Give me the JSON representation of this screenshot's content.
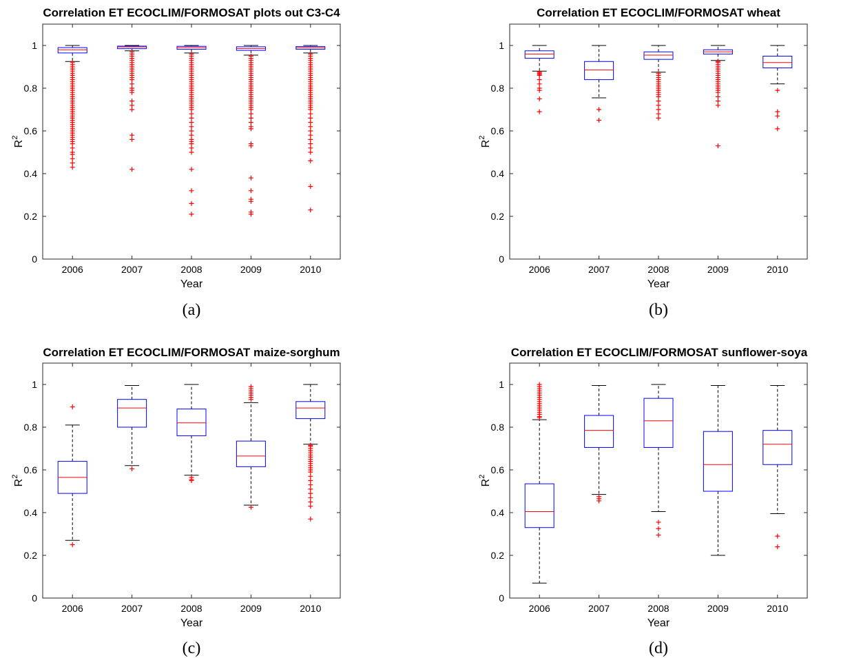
{
  "chart_data": [
    {
      "type": "box",
      "title": "Correlation ET ECOCLIM/FORMOSAT plots out C3-C4",
      "panel_label": "(a)",
      "xlabel": "Year",
      "ylabel": "R",
      "ylabel_superscript": "2",
      "categories": [
        "2006",
        "2007",
        "2008",
        "2009",
        "2010"
      ],
      "ylim": [
        0,
        1.1
      ],
      "yticks": [
        "0",
        "0.2",
        "0.4",
        "0.6",
        "0.8",
        "1"
      ],
      "boxes": [
        {
          "q1": 0.965,
          "median": 0.98,
          "q3": 0.99,
          "whisker_low": 0.925,
          "whisker_high": 1.0,
          "outliers": [
            0.92,
            0.91,
            0.9,
            0.89,
            0.88,
            0.87,
            0.86,
            0.85,
            0.84,
            0.83,
            0.82,
            0.81,
            0.8,
            0.79,
            0.78,
            0.77,
            0.76,
            0.75,
            0.74,
            0.73,
            0.72,
            0.71,
            0.7,
            0.69,
            0.68,
            0.67,
            0.66,
            0.65,
            0.64,
            0.63,
            0.62,
            0.61,
            0.6,
            0.59,
            0.58,
            0.57,
            0.56,
            0.55,
            0.54,
            0.52,
            0.5,
            0.49,
            0.47,
            0.45,
            0.43
          ]
        },
        {
          "q1": 0.985,
          "median": 0.993,
          "q3": 0.997,
          "whisker_low": 0.975,
          "whisker_high": 1.0,
          "outliers": [
            0.97,
            0.96,
            0.95,
            0.94,
            0.93,
            0.92,
            0.91,
            0.9,
            0.89,
            0.88,
            0.87,
            0.86,
            0.85,
            0.84,
            0.82,
            0.8,
            0.79,
            0.78,
            0.74,
            0.72,
            0.7,
            0.58,
            0.56,
            0.42
          ]
        },
        {
          "q1": 0.982,
          "median": 0.99,
          "q3": 0.996,
          "whisker_low": 0.965,
          "whisker_high": 1.0,
          "outliers": [
            0.96,
            0.95,
            0.94,
            0.93,
            0.92,
            0.91,
            0.9,
            0.89,
            0.88,
            0.87,
            0.86,
            0.85,
            0.84,
            0.83,
            0.82,
            0.81,
            0.8,
            0.79,
            0.78,
            0.77,
            0.76,
            0.75,
            0.74,
            0.73,
            0.72,
            0.71,
            0.7,
            0.68,
            0.66,
            0.64,
            0.62,
            0.6,
            0.58,
            0.56,
            0.55,
            0.54,
            0.52,
            0.5,
            0.42,
            0.32,
            0.26,
            0.21
          ]
        },
        {
          "q1": 0.977,
          "median": 0.986,
          "q3": 0.994,
          "whisker_low": 0.955,
          "whisker_high": 1.0,
          "outliers": [
            0.95,
            0.94,
            0.93,
            0.92,
            0.91,
            0.9,
            0.89,
            0.88,
            0.87,
            0.86,
            0.85,
            0.84,
            0.83,
            0.82,
            0.81,
            0.8,
            0.79,
            0.78,
            0.77,
            0.76,
            0.75,
            0.74,
            0.73,
            0.72,
            0.71,
            0.7,
            0.68,
            0.66,
            0.64,
            0.62,
            0.61,
            0.54,
            0.53,
            0.38,
            0.32,
            0.28,
            0.27,
            0.22,
            0.21
          ]
        },
        {
          "q1": 0.982,
          "median": 0.989,
          "q3": 0.995,
          "whisker_low": 0.965,
          "whisker_high": 1.0,
          "outliers": [
            0.96,
            0.95,
            0.94,
            0.93,
            0.92,
            0.91,
            0.9,
            0.89,
            0.88,
            0.87,
            0.86,
            0.85,
            0.84,
            0.83,
            0.82,
            0.81,
            0.8,
            0.79,
            0.78,
            0.77,
            0.76,
            0.75,
            0.74,
            0.73,
            0.72,
            0.71,
            0.7,
            0.68,
            0.66,
            0.64,
            0.62,
            0.6,
            0.58,
            0.56,
            0.54,
            0.52,
            0.5,
            0.46,
            0.34,
            0.23
          ]
        }
      ]
    },
    {
      "type": "box",
      "title": "Correlation ET ECOCLIM/FORMOSAT wheat",
      "panel_label": "(b)",
      "xlabel": "Year",
      "ylabel": "R",
      "ylabel_superscript": "2",
      "categories": [
        "2006",
        "2007",
        "2008",
        "2009",
        "2010"
      ],
      "ylim": [
        0,
        1.1
      ],
      "yticks": [
        "0",
        "0.2",
        "0.4",
        "0.6",
        "0.8",
        "1"
      ],
      "boxes": [
        {
          "q1": 0.94,
          "median": 0.96,
          "q3": 0.975,
          "whisker_low": 0.88,
          "whisker_high": 1.0,
          "outliers": [
            0.875,
            0.87,
            0.865,
            0.86,
            0.84,
            0.82,
            0.8,
            0.79,
            0.75,
            0.69
          ]
        },
        {
          "q1": 0.84,
          "median": 0.885,
          "q3": 0.925,
          "whisker_low": 0.755,
          "whisker_high": 1.0,
          "outliers": [
            0.7,
            0.65
          ]
        },
        {
          "q1": 0.935,
          "median": 0.955,
          "q3": 0.97,
          "whisker_low": 0.875,
          "whisker_high": 1.0,
          "outliers": [
            0.87,
            0.86,
            0.85,
            0.84,
            0.83,
            0.82,
            0.81,
            0.8,
            0.79,
            0.78,
            0.77,
            0.76,
            0.74,
            0.72,
            0.7,
            0.68,
            0.66
          ]
        },
        {
          "q1": 0.96,
          "median": 0.97,
          "q3": 0.98,
          "whisker_low": 0.93,
          "whisker_high": 1.0,
          "outliers": [
            0.925,
            0.92,
            0.91,
            0.9,
            0.89,
            0.88,
            0.87,
            0.86,
            0.85,
            0.84,
            0.83,
            0.82,
            0.81,
            0.8,
            0.79,
            0.78,
            0.76,
            0.74,
            0.72,
            0.53
          ]
        },
        {
          "q1": 0.895,
          "median": 0.92,
          "q3": 0.95,
          "whisker_low": 0.82,
          "whisker_high": 1.0,
          "outliers": [
            0.79,
            0.69,
            0.67,
            0.61
          ]
        }
      ]
    },
    {
      "type": "box",
      "title": "Correlation ET ECOCLIM/FORMOSAT maize-sorghum",
      "panel_label": "(c)",
      "xlabel": "Year",
      "ylabel": "R",
      "ylabel_superscript": "2",
      "categories": [
        "2006",
        "2007",
        "2008",
        "2009",
        "2010"
      ],
      "ylim": [
        0,
        1.1
      ],
      "yticks": [
        "0",
        "0.2",
        "0.4",
        "0.6",
        "0.8",
        "1"
      ],
      "boxes": [
        {
          "q1": 0.49,
          "median": 0.565,
          "q3": 0.64,
          "whisker_low": 0.27,
          "whisker_high": 0.81,
          "outliers": [
            0.895,
            0.25
          ]
        },
        {
          "q1": 0.8,
          "median": 0.89,
          "q3": 0.93,
          "whisker_low": 0.62,
          "whisker_high": 0.995,
          "outliers": [
            0.605
          ]
        },
        {
          "q1": 0.76,
          "median": 0.82,
          "q3": 0.885,
          "whisker_low": 0.575,
          "whisker_high": 1.0,
          "outliers": [
            0.565,
            0.555,
            0.55
          ]
        },
        {
          "q1": 0.615,
          "median": 0.665,
          "q3": 0.735,
          "whisker_low": 0.435,
          "whisker_high": 0.915,
          "outliers": [
            0.99,
            0.98,
            0.97,
            0.96,
            0.95,
            0.94,
            0.93,
            0.425
          ]
        },
        {
          "q1": 0.84,
          "median": 0.89,
          "q3": 0.92,
          "whisker_low": 0.72,
          "whisker_high": 1.0,
          "outliers": [
            0.715,
            0.71,
            0.7,
            0.69,
            0.68,
            0.67,
            0.66,
            0.65,
            0.64,
            0.63,
            0.62,
            0.61,
            0.6,
            0.59,
            0.57,
            0.55,
            0.53,
            0.51,
            0.49,
            0.47,
            0.45,
            0.43,
            0.37
          ]
        }
      ]
    },
    {
      "type": "box",
      "title": "Correlation ET ECOCLIM/FORMOSAT sunflower-soya",
      "panel_label": "(d)",
      "xlabel": "Year",
      "ylabel": "R",
      "ylabel_superscript": "2",
      "categories": [
        "2006",
        "2007",
        "2008",
        "2009",
        "2010"
      ],
      "ylim": [
        0,
        1.1
      ],
      "yticks": [
        "0",
        "0.2",
        "0.4",
        "0.6",
        "0.8",
        "1"
      ],
      "boxes": [
        {
          "q1": 0.33,
          "median": 0.405,
          "q3": 0.535,
          "whisker_low": 0.07,
          "whisker_high": 0.835,
          "outliers": [
            1.0,
            0.99,
            0.98,
            0.97,
            0.96,
            0.95,
            0.94,
            0.93,
            0.92,
            0.91,
            0.9,
            0.89,
            0.88,
            0.87,
            0.86,
            0.85,
            0.845
          ]
        },
        {
          "q1": 0.705,
          "median": 0.785,
          "q3": 0.855,
          "whisker_low": 0.485,
          "whisker_high": 0.995,
          "outliers": [
            0.475,
            0.465,
            0.455
          ]
        },
        {
          "q1": 0.705,
          "median": 0.83,
          "q3": 0.935,
          "whisker_low": 0.405,
          "whisker_high": 1.0,
          "outliers": [
            0.355,
            0.325,
            0.295
          ]
        },
        {
          "q1": 0.5,
          "median": 0.625,
          "q3": 0.78,
          "whisker_low": 0.2,
          "whisker_high": 0.995,
          "outliers": []
        },
        {
          "q1": 0.625,
          "median": 0.72,
          "q3": 0.785,
          "whisker_low": 0.395,
          "whisker_high": 0.995,
          "outliers": [
            0.29,
            0.24
          ]
        }
      ]
    }
  ],
  "colors": {
    "box": "#0000ff",
    "median": "#ff0000",
    "outlier": "#ff0000",
    "whisker": "#000000",
    "axis": "#262626"
  }
}
